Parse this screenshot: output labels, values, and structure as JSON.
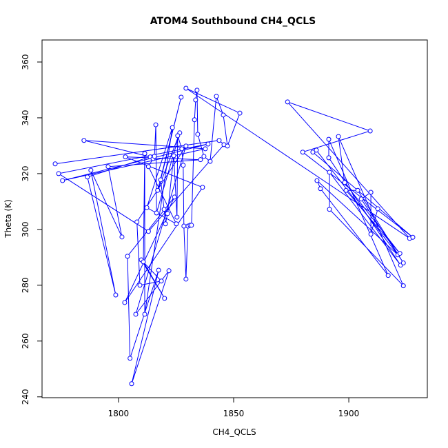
{
  "chart_data": {
    "type": "line",
    "title": "ATOM4 Southbound CH4_QCLS",
    "x_label": "CH4_QCLS",
    "y_label": "Theta (K)",
    "color": "#0000ff",
    "markers": true,
    "xlim": [
      1766.8,
      1934.1
    ],
    "ylim": [
      239.7,
      367.9
    ],
    "xticks": [
      1800,
      1850,
      1900
    ],
    "yticks": [
      240,
      260,
      280,
      300,
      320,
      340,
      360
    ],
    "x": [
      1772.5,
      1843.7,
      1845.8,
      1813.0,
      1774.0,
      1838.9,
      1775.7,
      1837.7,
      1785.0,
      1813.8,
      1786.5,
      1798.8,
      1788.0,
      1801.5,
      1795.5,
      1835.6,
      1803.0,
      1836.5,
      1802.7,
      1824.3,
      1803.9,
      1805.0,
      1817.4,
      1805.7,
      1821.9,
      1807.5,
      1829.3,
      1808.0,
      1809.3,
      1818.6,
      1809.9,
      1820.0,
      1810.8,
      1811.4,
      1811.4,
      1823.4,
      1812.3,
      1825.1,
      1813.0,
      1815.0,
      1815.6,
      1816.2,
      1816.5,
      1826.6,
      1817.0,
      1827.2,
      1818.3,
      1819.8,
      1820.4,
      1821.3,
      1824.0,
      1825.4,
      1825.7,
      1827.5,
      1828.1,
      1828.4,
      1829.3,
      1830.2,
      1831.1,
      1831.7,
      1833.0,
      1833.5,
      1834.1,
      1834.4,
      1837.1,
      1839.8,
      1842.5,
      1845.5,
      1847.3,
      1852.7,
      1829.3,
      1926.4,
      1873.4,
      1909.3,
      1880.0,
      1927.8,
      1884.4,
      1885.9,
      1921.3,
      1886.2,
      1887.7,
      1917.1,
      1891.3,
      1891.3,
      1922.5,
      1891.6,
      1891.6,
      1923.7,
      1895.5,
      1898.2,
      1922.2,
      1898.8,
      1903.9,
      1923.7,
      1905.4,
      1909.6,
      1909.6,
      1912.6
    ],
    "values": [
      323.5,
      331.9,
      330.4,
      299.3,
      320.0,
      330.6,
      317.5,
      328.9,
      331.9,
      326.0,
      318.8,
      276.5,
      321.2,
      297.3,
      322.5,
      325.0,
      326.0,
      315.1,
      273.8,
      311.6,
      290.4,
      253.8,
      285.4,
      244.7,
      285.2,
      269.6,
      329.9,
      302.7,
      280.0,
      281.5,
      289.1,
      275.3,
      288.4,
      327.2,
      269.6,
      336.5,
      307.8,
      302.0,
      322.5,
      325.4,
      326.2,
      337.5,
      305.9,
      334.6,
      314.0,
      347.4,
      317.8,
      307.2,
      302.0,
      305.7,
      326.4,
      304.4,
      333.6,
      328.9,
      323.0,
      301.2,
      282.2,
      301.2,
      301.5,
      301.5,
      339.3,
      346.4,
      349.9,
      334.1,
      326.2,
      324.4,
      347.7,
      341.0,
      329.9,
      341.7,
      350.6,
      296.8,
      345.7,
      335.3,
      327.7,
      297.2,
      327.7,
      328.4,
      290.9,
      317.5,
      314.6,
      283.5,
      332.3,
      325.7,
      287.2,
      320.5,
      307.2,
      279.8,
      333.3,
      316.8,
      291.4,
      314.0,
      314.0,
      288.0,
      310.9,
      313.3,
      298.3,
      307.4
    ]
  }
}
